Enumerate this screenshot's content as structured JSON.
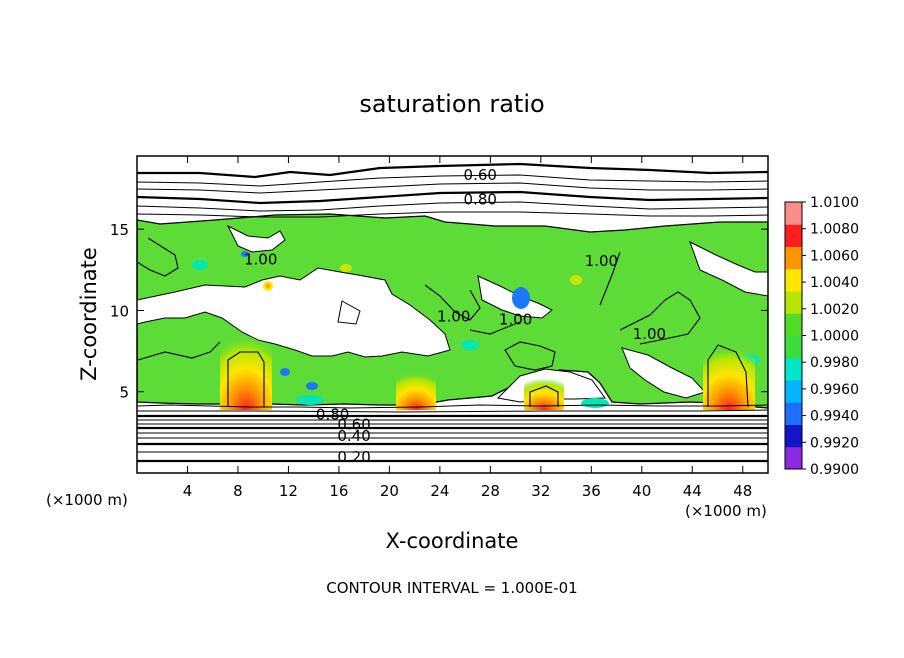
{
  "chart_data": {
    "type": "heatmap",
    "title": "saturation ratio",
    "xlabel": "X-coordinate",
    "ylabel": "Z-coordinate",
    "x_unit_left": "(×1000 m)",
    "x_unit_right": "(×1000 m)",
    "footer": "CONTOUR INTERVAL = 1.000E-01",
    "xlim": [
      0,
      50
    ],
    "ylim": [
      0,
      19.5
    ],
    "x_ticks": [
      4,
      8,
      12,
      16,
      20,
      24,
      28,
      32,
      36,
      40,
      44,
      48
    ],
    "x_tick_labels": [
      "4",
      "8",
      "12",
      "16",
      "20",
      "24",
      "28",
      "32",
      "36",
      "40",
      "44",
      "48"
    ],
    "y_ticks": [
      5,
      10,
      15
    ],
    "y_tick_labels": [
      "5",
      "10",
      "15"
    ],
    "colorbar": {
      "range": [
        0.99,
        1.01
      ],
      "labels": [
        "1.0100",
        "1.0080",
        "1.0060",
        "1.0040",
        "1.0020",
        "1.0000",
        "0.9980",
        "0.9960",
        "0.9940",
        "0.9920",
        "0.9900"
      ],
      "colors": [
        "#8a2be2",
        "#1414c8",
        "#1e6eff",
        "#00b4ff",
        "#00e6c8",
        "#3cdc3c",
        "#50dc28",
        "#b4e600",
        "#ffe600",
        "#ff9600",
        "#ff1e1e",
        "#ff8c8c"
      ]
    },
    "fill_colors": {
      "green": "#5ddc38",
      "yellow": "#c8e600",
      "orange": "#ff9a00",
      "red": "#ff2020",
      "cyan": "#00e6b4",
      "blue": "#1e78ff"
    },
    "contour_labels": [
      {
        "text": "0.60",
        "x": 27.2,
        "z": 18.4
      },
      {
        "text": "0.80",
        "x": 27.2,
        "z": 16.9
      },
      {
        "text": "0.80",
        "x": 15.5,
        "z": 3.65
      },
      {
        "text": "0.60",
        "x": 17.2,
        "z": 3.05
      },
      {
        "text": "0.40",
        "x": 17.2,
        "z": 2.35
      },
      {
        "text": "0.20",
        "x": 17.2,
        "z": 1.05
      },
      {
        "text": "1.00",
        "x": 9.8,
        "z": 13.2
      },
      {
        "text": "1.00",
        "x": 25.1,
        "z": 9.7
      },
      {
        "text": "1.00",
        "x": 30.0,
        "z": 9.5
      },
      {
        "text": "1.00",
        "x": 36.8,
        "z": 13.1
      },
      {
        "text": "1.00",
        "x": 40.6,
        "z": 8.6
      }
    ]
  }
}
